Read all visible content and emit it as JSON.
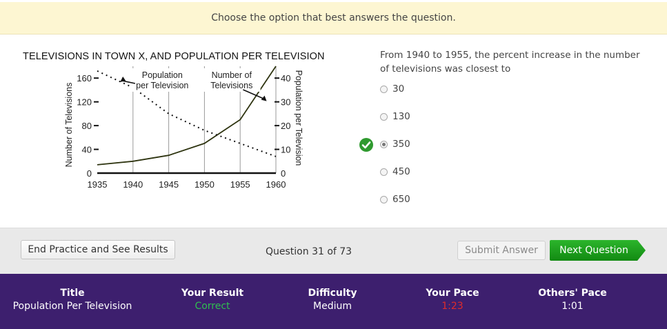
{
  "banner": {
    "instruction": "Choose the option that best answers the question."
  },
  "chart_data": {
    "type": "line",
    "title": "TELEVISIONS IN TOWN X, AND POPULATION PER TELEVISION",
    "xlabel": "",
    "ylabel_left": "Number of Televisions",
    "ylabel_right": "Population per Television",
    "x": [
      1935,
      1940,
      1945,
      1950,
      1955,
      1960
    ],
    "x_tick_labels": [
      "1935",
      "1940",
      "1945",
      "1950",
      "1955",
      "1960"
    ],
    "xlim": [
      1935,
      1960
    ],
    "ylim_left": [
      0,
      180
    ],
    "ylim_right": [
      0,
      45
    ],
    "y_left_ticks": [
      "0",
      "40",
      "80",
      "120",
      "160"
    ],
    "y_right_ticks": [
      "0",
      "10",
      "20",
      "30",
      "40"
    ],
    "grid_vertical": true,
    "series": [
      {
        "name": "Number of Televisions",
        "axis": "left",
        "style": "solid",
        "x": [
          1935,
          1940,
          1945,
          1950,
          1955,
          1960
        ],
        "values": [
          14,
          20,
          30,
          50,
          90,
          180
        ]
      },
      {
        "name": "Population per Television",
        "axis": "right",
        "style": "dotted",
        "x": [
          1935,
          1940,
          1945,
          1950,
          1955,
          1960
        ],
        "values": [
          43,
          36,
          25,
          18,
          12.5,
          7
        ]
      }
    ],
    "annotations": [
      {
        "text": "Population per Television",
        "lines": [
          "Population",
          "per Television"
        ],
        "arrow_to": "Population per Television"
      },
      {
        "text": "Number of Televisions",
        "lines": [
          "Number of",
          "Televisions"
        ],
        "arrow_to": "Number of Televisions"
      }
    ]
  },
  "question": {
    "text": "From 1940 to 1955, the percent increase in the number of televisions was closest to",
    "options": [
      "30",
      "130",
      "350",
      "450",
      "650"
    ],
    "selected_index": 2
  },
  "actions": {
    "end_label": "End Practice and See Results",
    "question_counter": "Question 31 of 73",
    "submit_label": "Submit Answer",
    "next_label": "Next Question"
  },
  "colors": {
    "banner": "#fdf6d2",
    "footer": "#3d1f6e",
    "correct": "#2f9a2f",
    "pace_slow": "#d42222",
    "next_button": "#1e9b1e"
  },
  "stats": [
    {
      "title": "Title",
      "value": "Population Per Television"
    },
    {
      "title": "Your Result",
      "value": "Correct"
    },
    {
      "title": "Difficulty",
      "value": "Medium"
    },
    {
      "title": "Your Pace",
      "value": "1:23"
    },
    {
      "title": "Others' Pace",
      "value": "1:01"
    }
  ]
}
